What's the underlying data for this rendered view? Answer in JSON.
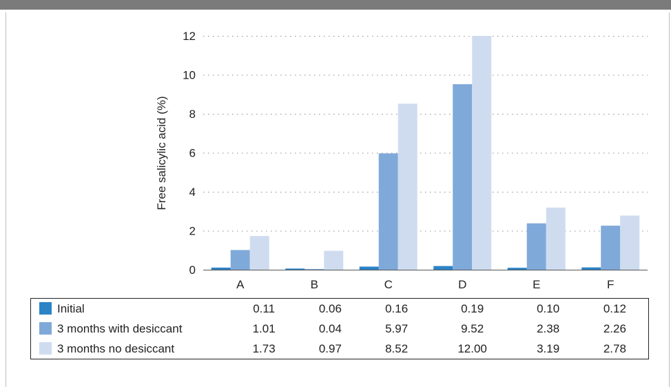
{
  "chart_data": {
    "type": "bar",
    "title": "",
    "xlabel": "",
    "ylabel": "Free salicylic acid (%)",
    "ylim": [
      0,
      12
    ],
    "yticks": [
      "0",
      "2",
      "4",
      "6",
      "8",
      "10",
      "12"
    ],
    "grid": true,
    "legend": "data table below chart",
    "categories": [
      "A",
      "B",
      "C",
      "D",
      "E",
      "F"
    ],
    "series": [
      {
        "name": "Initial",
        "color": "#2c83c6",
        "values": [
          0.11,
          0.06,
          0.16,
          0.19,
          0.1,
          0.12
        ],
        "labels": [
          "0.11",
          "0.06",
          "0.16",
          "0.19",
          "0.10",
          "0.12"
        ]
      },
      {
        "name": "3 months with desiccant",
        "color": "#7fa9d9",
        "values": [
          1.01,
          0.04,
          5.97,
          9.52,
          2.38,
          2.26
        ],
        "labels": [
          "1.01",
          "0.04",
          "5.97",
          "9.52",
          "2.38",
          "2.26"
        ]
      },
      {
        "name": "3 months no desiccant",
        "color": "#cfdcf0",
        "values": [
          1.73,
          0.97,
          8.52,
          12.0,
          3.19,
          2.78
        ],
        "labels": [
          "1.73",
          "0.97",
          "8.52",
          "12.00",
          "3.19",
          "2.78"
        ]
      }
    ]
  }
}
